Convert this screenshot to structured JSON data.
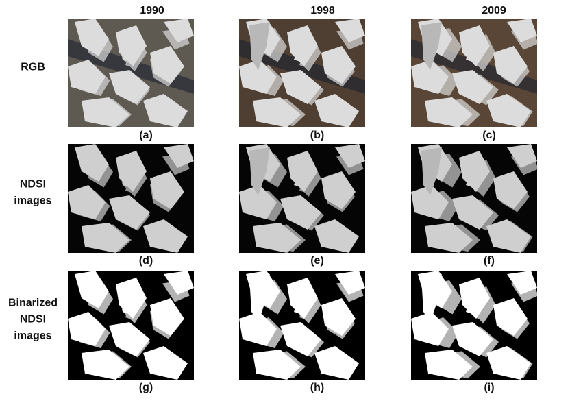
{
  "columns": [
    "1990",
    "1998",
    "2009"
  ],
  "rows": [
    {
      "label_lines": [
        "RGB"
      ],
      "captions": [
        "(a)",
        "(b)",
        "(c)"
      ]
    },
    {
      "label_lines": [
        "NDSI",
        "images"
      ],
      "captions": [
        "(d)",
        "(e)",
        "(f)"
      ]
    },
    {
      "label_lines": [
        "Binarized",
        "NDSI",
        "images"
      ],
      "captions": [
        "(g)",
        "(h)",
        "(i)"
      ]
    }
  ]
}
